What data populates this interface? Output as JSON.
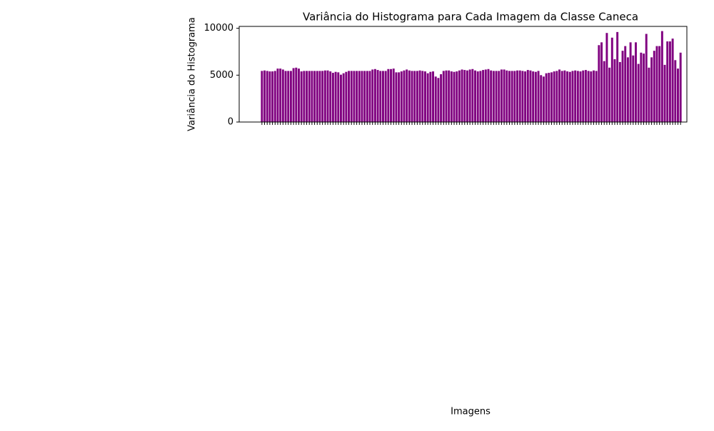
{
  "chart_data": {
    "type": "bar",
    "title": "Variância do Histograma para Cada Imagem da Classe Caneca",
    "xlabel": "Imagens",
    "ylabel": "Variância do Histograma",
    "color": "#800080",
    "ylim": [
      0,
      10200
    ],
    "yticks": [
      0,
      5000,
      10000
    ],
    "categories": [
      null,
      null,
      null,
      null,
      null,
      null,
      null,
      null,
      null,
      null,
      null,
      null,
      null,
      null,
      null,
      null,
      null,
      null,
      null,
      null,
      null,
      null,
      null,
      null,
      null,
      null,
      null,
      null,
      null,
      null,
      null,
      null,
      null,
      null,
      null,
      null,
      null,
      null,
      null,
      null,
      null,
      null,
      null,
      null,
      null,
      null,
      null,
      null,
      null,
      null,
      null,
      null,
      null,
      null,
      null,
      null,
      null,
      null,
      null,
      null,
      null,
      null,
      null,
      null,
      null,
      null,
      null,
      null,
      null,
      null,
      null,
      null,
      null,
      null,
      null,
      null,
      null,
      null,
      null,
      null,
      null,
      null,
      null,
      null,
      null,
      null,
      null,
      null,
      null,
      null,
      null,
      null,
      null,
      null,
      null,
      null,
      null,
      null,
      null,
      null,
      null,
      null,
      null,
      null,
      null,
      null,
      null,
      null,
      null,
      null,
      null,
      null,
      null,
      null,
      null,
      null,
      null,
      null,
      null,
      null,
      null,
      null,
      null,
      null,
      null,
      null,
      null,
      null,
      null,
      null,
      null,
      null,
      null,
      null,
      null,
      null,
      null,
      null,
      null,
      null,
      null,
      null,
      null,
      null,
      null,
      null,
      null,
      null,
      null,
      null,
      null,
      null,
      null,
      null,
      null,
      null,
      null,
      null,
      null,
      null
    ],
    "values": [
      5450,
      5500,
      5450,
      5400,
      5400,
      5450,
      5700,
      5700,
      5600,
      5450,
      5450,
      5450,
      5750,
      5800,
      5700,
      5400,
      5450,
      5450,
      5450,
      5450,
      5450,
      5450,
      5450,
      5450,
      5500,
      5500,
      5400,
      5250,
      5350,
      5300,
      5050,
      5200,
      5350,
      5450,
      5450,
      5450,
      5450,
      5450,
      5450,
      5450,
      5450,
      5450,
      5600,
      5650,
      5550,
      5450,
      5450,
      5450,
      5650,
      5650,
      5700,
      5300,
      5300,
      5400,
      5500,
      5600,
      5500,
      5450,
      5450,
      5450,
      5500,
      5450,
      5400,
      5200,
      5350,
      5400,
      4850,
      4700,
      5100,
      5450,
      5500,
      5500,
      5400,
      5350,
      5400,
      5500,
      5600,
      5550,
      5500,
      5600,
      5650,
      5500,
      5400,
      5450,
      5550,
      5600,
      5650,
      5500,
      5450,
      5450,
      5450,
      5600,
      5600,
      5500,
      5450,
      5450,
      5450,
      5500,
      5500,
      5450,
      5400,
      5550,
      5500,
      5400,
      5350,
      5450,
      5000,
      4850,
      5200,
      5250,
      5300,
      5400,
      5450,
      5600,
      5450,
      5500,
      5400,
      5350,
      5450,
      5500,
      5450,
      5400,
      5500,
      5550,
      5450,
      5400,
      5500,
      5450,
      8200,
      8500,
      6500,
      9500,
      5800,
      9000,
      6700,
      9600,
      6400,
      7600,
      8100,
      6900,
      8500,
      7100,
      8500,
      6200,
      7400,
      7300,
      9400,
      5800,
      6900,
      7600,
      8100,
      8100,
      9700,
      6100,
      8600,
      8600,
      8900,
      6600,
      5700,
      7400
    ]
  }
}
